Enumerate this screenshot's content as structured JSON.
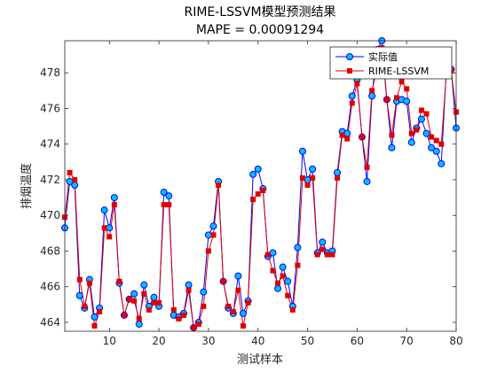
{
  "chart_data": {
    "type": "line",
    "title": "RIME-LSSVM模型预测结果",
    "subtitle": "MAPE = 0.00091294",
    "xlabel": "测试样本",
    "ylabel": "排烟温度",
    "xlim": [
      1,
      80
    ],
    "ylim": [
      463.5,
      479.8
    ],
    "xticks": [
      10,
      20,
      30,
      40,
      50,
      60,
      70,
      80
    ],
    "yticks": [
      464,
      466,
      468,
      470,
      472,
      474,
      476,
      478
    ],
    "grid": false,
    "legend_position": "top-right",
    "x": [
      1,
      2,
      3,
      4,
      5,
      6,
      7,
      8,
      9,
      10,
      11,
      12,
      13,
      14,
      15,
      16,
      17,
      18,
      19,
      20,
      21,
      22,
      23,
      24,
      25,
      26,
      27,
      28,
      29,
      30,
      31,
      32,
      33,
      34,
      35,
      36,
      37,
      38,
      39,
      40,
      41,
      42,
      43,
      44,
      45,
      46,
      47,
      48,
      49,
      50,
      51,
      52,
      53,
      54,
      55,
      56,
      57,
      58,
      59,
      60,
      61,
      62,
      63,
      64,
      65,
      66,
      67,
      68,
      69,
      70,
      71,
      72,
      73,
      74,
      75,
      76,
      77,
      78,
      79,
      80
    ],
    "series": [
      {
        "name": "实际值",
        "color": "#0000ff",
        "marker": "circle",
        "marker_fill": "#00bfff",
        "values": [
          469.3,
          471.9,
          471.7,
          465.5,
          464.8,
          466.4,
          464.3,
          464.8,
          470.3,
          469.3,
          471.0,
          466.2,
          464.4,
          465.3,
          465.6,
          463.9,
          466.1,
          464.9,
          465.4,
          464.9,
          471.3,
          471.1,
          464.4,
          464.3,
          464.5,
          466.1,
          463.7,
          464.0,
          465.7,
          468.9,
          469.4,
          471.9,
          466.3,
          464.8,
          464.5,
          466.6,
          464.5,
          465.2,
          472.3,
          472.6,
          471.5,
          467.7,
          467.9,
          465.9,
          467.1,
          466.3,
          464.9,
          468.2,
          473.6,
          472.0,
          472.6,
          467.9,
          468.5,
          467.9,
          468.0,
          472.4,
          474.7,
          474.6,
          476.7,
          477.6,
          474.4,
          471.9,
          476.7,
          479.3,
          479.8,
          476.5,
          473.8,
          476.4,
          476.5,
          476.4,
          474.1,
          474.9,
          475.4,
          474.6,
          473.8,
          473.6,
          472.9,
          478.1,
          478.2,
          474.9
        ]
      },
      {
        "name": "RIME-LSSVM",
        "color": "#e00000",
        "marker": "square",
        "marker_fill": "#e00000",
        "values": [
          469.9,
          472.4,
          472.0,
          466.4,
          464.9,
          466.2,
          463.8,
          464.6,
          469.3,
          468.8,
          470.6,
          466.3,
          464.4,
          465.3,
          465.2,
          464.2,
          465.6,
          464.7,
          465.1,
          465.1,
          470.6,
          470.6,
          464.7,
          464.2,
          464.4,
          465.8,
          463.7,
          463.9,
          464.9,
          468.0,
          468.9,
          471.7,
          466.3,
          464.9,
          464.6,
          465.8,
          463.8,
          465.1,
          470.9,
          471.2,
          471.4,
          467.8,
          466.9,
          466.2,
          466.6,
          465.5,
          464.7,
          467.2,
          472.1,
          471.7,
          472.1,
          467.8,
          468.1,
          467.8,
          467.8,
          472.1,
          474.5,
          474.3,
          476.3,
          477.4,
          474.4,
          472.7,
          477.0,
          478.2,
          479.4,
          476.5,
          474.5,
          476.6,
          477.5,
          477.1,
          474.6,
          474.8,
          475.9,
          475.7,
          474.4,
          474.2,
          474.0,
          477.9,
          478.1,
          475.8
        ]
      }
    ]
  }
}
